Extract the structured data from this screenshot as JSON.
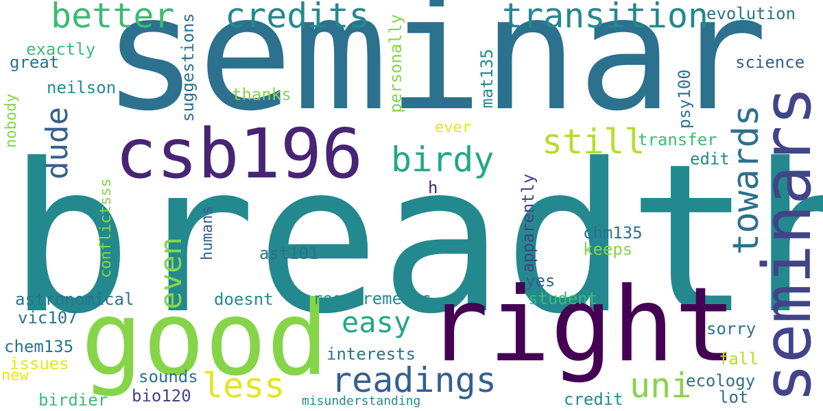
{
  "palette": {
    "background": "#ffffff",
    "yellow": "#e3e61f",
    "light_green": "#86d549",
    "green": "#3bbb75",
    "teal_green": "#22a884",
    "teal": "#23898e",
    "blue": "#2c718e",
    "dark_blue": "#355f8d",
    "indigo": "#414487",
    "purple": "#482475",
    "dark_purple": "#440154"
  },
  "words": [
    "breadth",
    "seminar",
    "seminars",
    "good",
    "right",
    "csb196",
    "credits",
    "better",
    "transition",
    "towards",
    "readings",
    "still",
    "birdy",
    "less",
    "easy",
    "uni",
    "even",
    "dude",
    "evolution",
    "exactly",
    "great",
    "science",
    "neilson",
    "suggestions",
    "personally",
    "mat135",
    "psy100",
    "thanks",
    "ever",
    "transfer",
    "edit",
    "nobody",
    "conflictsss",
    "h",
    "apparently",
    "humans",
    "chm135",
    "keeps",
    "ast101",
    "yes",
    "astronomical",
    "doesnt",
    "requirements",
    "student",
    "vic107",
    "sorry",
    "chem135",
    "interests",
    "fall",
    "issues",
    "new",
    "sounds",
    "ecology",
    "birdier",
    "bio120",
    "credit",
    "lot",
    "misunderstanding"
  ]
}
